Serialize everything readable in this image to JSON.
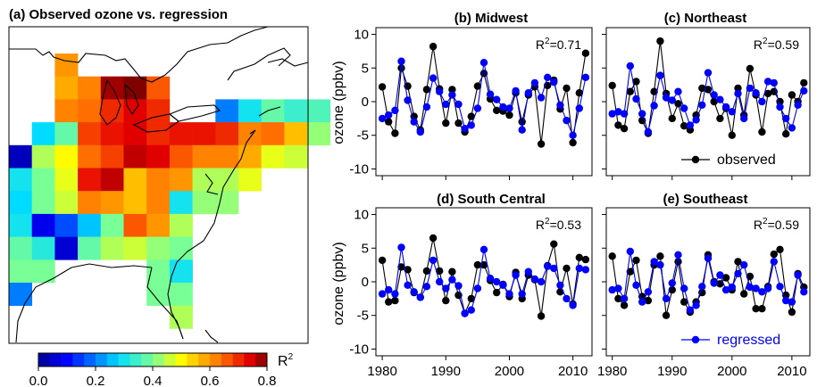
{
  "chart_data": [
    {
      "type": "heatmap",
      "title": "(a) Observed ozone vs. regression",
      "colorbar": {
        "label": "R",
        "label_sup": "2",
        "ticks": [
          "0.0",
          "0.2",
          "0.4",
          "0.6",
          "0.8"
        ],
        "range": [
          0.0,
          0.8
        ]
      },
      "grid_origin": {
        "col0": 0,
        "row0": 0
      },
      "cells": [
        [
          2,
          0,
          0.6
        ],
        [
          2,
          1,
          0.58
        ],
        [
          3,
          1,
          0.62
        ],
        [
          4,
          1,
          0.78
        ],
        [
          5,
          1,
          0.82
        ],
        [
          6,
          1,
          0.66
        ],
        [
          2,
          2,
          0.62
        ],
        [
          3,
          2,
          0.64
        ],
        [
          4,
          2,
          0.7
        ],
        [
          5,
          2,
          0.74
        ],
        [
          6,
          2,
          0.7
        ],
        [
          9,
          2,
          0.2
        ],
        [
          10,
          2,
          0.3
        ],
        [
          11,
          2,
          0.38
        ],
        [
          12,
          2,
          0.34
        ],
        [
          13,
          2,
          0.36
        ],
        [
          1,
          3,
          0.28
        ],
        [
          2,
          3,
          0.38
        ],
        [
          3,
          3,
          0.68
        ],
        [
          4,
          3,
          0.72
        ],
        [
          5,
          3,
          0.74
        ],
        [
          6,
          3,
          0.7
        ],
        [
          7,
          3,
          0.72
        ],
        [
          8,
          3,
          0.72
        ],
        [
          9,
          3,
          0.7
        ],
        [
          10,
          3,
          0.62
        ],
        [
          11,
          3,
          0.64
        ],
        [
          12,
          3,
          0.56
        ],
        [
          13,
          3,
          0.42
        ],
        [
          0,
          4,
          0.04
        ],
        [
          1,
          4,
          0.44
        ],
        [
          2,
          4,
          0.5
        ],
        [
          3,
          4,
          0.64
        ],
        [
          4,
          4,
          0.68
        ],
        [
          5,
          4,
          0.76
        ],
        [
          6,
          4,
          0.74
        ],
        [
          7,
          4,
          0.66
        ],
        [
          8,
          4,
          0.62
        ],
        [
          9,
          4,
          0.62
        ],
        [
          10,
          4,
          0.58
        ],
        [
          11,
          4,
          0.48
        ],
        [
          12,
          4,
          0.46
        ],
        [
          0,
          5,
          0.3
        ],
        [
          1,
          5,
          0.4
        ],
        [
          2,
          5,
          0.48
        ],
        [
          3,
          5,
          0.72
        ],
        [
          4,
          5,
          0.76
        ],
        [
          5,
          5,
          0.56
        ],
        [
          6,
          5,
          0.62
        ],
        [
          7,
          5,
          0.6
        ],
        [
          8,
          5,
          0.44
        ],
        [
          9,
          5,
          0.44
        ],
        [
          10,
          5,
          0.48
        ],
        [
          0,
          6,
          0.28
        ],
        [
          1,
          6,
          0.4
        ],
        [
          2,
          6,
          0.46
        ],
        [
          3,
          6,
          0.62
        ],
        [
          4,
          6,
          0.6
        ],
        [
          5,
          6,
          0.56
        ],
        [
          6,
          6,
          0.62
        ],
        [
          7,
          6,
          0.3
        ],
        [
          8,
          6,
          0.42
        ],
        [
          9,
          6,
          0.42
        ],
        [
          0,
          7,
          0.3
        ],
        [
          1,
          7,
          0.08
        ],
        [
          2,
          7,
          0.16
        ],
        [
          3,
          7,
          0.26
        ],
        [
          4,
          7,
          0.4
        ],
        [
          5,
          7,
          0.66
        ],
        [
          6,
          7,
          0.6
        ],
        [
          7,
          7,
          0.44
        ],
        [
          0,
          8,
          0.38
        ],
        [
          1,
          8,
          0.32
        ],
        [
          2,
          8,
          0.06
        ],
        [
          3,
          8,
          0.38
        ],
        [
          4,
          8,
          0.44
        ],
        [
          5,
          8,
          0.46
        ],
        [
          6,
          8,
          0.42
        ],
        [
          7,
          8,
          0.4
        ],
        [
          0,
          9,
          0.4
        ],
        [
          1,
          9,
          0.4
        ],
        [
          6,
          9,
          0.4
        ],
        [
          7,
          9,
          0.3
        ],
        [
          0,
          10,
          0.2
        ],
        [
          6,
          10,
          0.4
        ],
        [
          7,
          10,
          0.4
        ],
        [
          7,
          11,
          0.44
        ]
      ]
    },
    {
      "type": "line",
      "title": "(b) Midwest",
      "r2_label": "R",
      "r2_sup": "2",
      "r2_value": "=0.71",
      "ylabel": "ozone (ppbv)",
      "ylim": [
        -11,
        11
      ],
      "yticks": [
        "-10",
        "-5",
        "0",
        "5",
        "10"
      ],
      "xlim": [
        1979,
        2013
      ],
      "xticks": [],
      "x": [
        1980,
        1981,
        1982,
        1983,
        1984,
        1985,
        1986,
        1987,
        1988,
        1989,
        1990,
        1991,
        1992,
        1993,
        1994,
        1995,
        1996,
        1997,
        1998,
        1999,
        2000,
        2001,
        2002,
        2003,
        2004,
        2005,
        2006,
        2007,
        2008,
        2009,
        2010,
        2011,
        2012
      ],
      "series": [
        {
          "name": "observed",
          "color": "#000000",
          "values": [
            2.2,
            -3.0,
            -4.7,
            5.0,
            2.3,
            -2.2,
            -4.2,
            1.8,
            8.2,
            1.9,
            -3.2,
            1.8,
            -3.2,
            -4.5,
            -2.2,
            2.3,
            4.2,
            0.4,
            -1.3,
            -1.4,
            -2.0,
            1.3,
            -3.0,
            1.0,
            2.2,
            -6.3,
            2.4,
            3.2,
            -1.1,
            2.0,
            -6.1,
            1.3,
            7.2
          ]
        },
        {
          "name": "regressed",
          "color": "#0000ff",
          "values": [
            -2.5,
            -2.0,
            -1.3,
            6.0,
            0.2,
            -3.0,
            -4.5,
            -0.8,
            3.5,
            1.5,
            -0.4,
            1.0,
            -0.4,
            -4.0,
            -3.5,
            -1.0,
            5.8,
            1.1,
            0.3,
            -0.8,
            -1.0,
            1.6,
            -4.2,
            1.3,
            2.8,
            0.6,
            3.6,
            2.9,
            -0.5,
            -2.8,
            -5.0,
            -1.0,
            3.6
          ]
        }
      ]
    },
    {
      "type": "line",
      "title": "(c) Northeast",
      "r2_label": "R",
      "r2_sup": "2",
      "r2_value": "=0.59",
      "ylabel": "",
      "ylim": [
        -11,
        11
      ],
      "yticks": [],
      "xlim": [
        1979,
        2013
      ],
      "xticks": [],
      "x": [
        1980,
        1981,
        1982,
        1983,
        1984,
        1985,
        1986,
        1987,
        1988,
        1989,
        1990,
        1991,
        1992,
        1993,
        1994,
        1995,
        1996,
        1997,
        1998,
        1999,
        2000,
        2001,
        2002,
        2003,
        2004,
        2005,
        2006,
        2007,
        2008,
        2009,
        2010,
        2011,
        2012
      ],
      "series": [
        {
          "name": "observed",
          "color": "#000000",
          "values": [
            2.4,
            -3.5,
            -4.0,
            1.5,
            3.0,
            -2.8,
            -4.7,
            1.5,
            9.0,
            1.2,
            -2.5,
            -0.3,
            -3.6,
            -4.2,
            -2.0,
            2.0,
            1.8,
            0.0,
            -2.5,
            -1.0,
            -5.0,
            2.0,
            -2.0,
            4.9,
            1.0,
            -4.5,
            1.2,
            1.5,
            0.0,
            -4.8,
            1.0,
            0.0,
            2.8
          ]
        },
        {
          "name": "regressed",
          "color": "#0000ff",
          "values": [
            -1.8,
            -1.5,
            -1.8,
            5.3,
            0.4,
            -1.8,
            -4.5,
            -0.6,
            3.9,
            0.6,
            0.2,
            1.5,
            -1.0,
            -3.5,
            -2.7,
            -0.5,
            4.3,
            1.0,
            0.3,
            -0.8,
            -1.5,
            1.2,
            -2.5,
            2.0,
            1.3,
            0.0,
            3.0,
            2.8,
            -0.8,
            -2.5,
            -3.9,
            -0.5,
            1.6
          ]
        }
      ]
    },
    {
      "type": "line",
      "title": "(d) South Central",
      "r2_label": "R",
      "r2_sup": "2",
      "r2_value": "=0.53",
      "ylabel": "ozone (ppbv)",
      "ylim": [
        -11,
        11
      ],
      "yticks": [
        "-10",
        "-5",
        "0",
        "5",
        "10"
      ],
      "xlim": [
        1979,
        2013
      ],
      "xticks": [
        "1980",
        "1990",
        "2000",
        "2010"
      ],
      "x": [
        1980,
        1981,
        1982,
        1983,
        1984,
        1985,
        1986,
        1987,
        1988,
        1989,
        1990,
        1991,
        1992,
        1993,
        1994,
        1995,
        1996,
        1997,
        1998,
        1999,
        2000,
        2001,
        2002,
        2003,
        2004,
        2005,
        2006,
        2007,
        2008,
        2009,
        2010,
        2011,
        2012
      ],
      "series": [
        {
          "name": "observed",
          "color": "#000000",
          "values": [
            3.2,
            -3.0,
            -2.8,
            2.2,
            1.8,
            -1.6,
            -2.3,
            1.6,
            6.5,
            1.6,
            -2.8,
            1.5,
            -2.0,
            -4.7,
            -2.5,
            2.5,
            2.5,
            0.2,
            -1.6,
            -0.4,
            -2.2,
            1.4,
            -2.5,
            1.0,
            0.3,
            -5.1,
            2.4,
            5.6,
            -1.5,
            2.0,
            -3.3,
            3.6,
            3.3
          ]
        },
        {
          "name": "regressed",
          "color": "#0000ff",
          "values": [
            -1.8,
            -1.2,
            -1.8,
            5.1,
            -0.5,
            -1.5,
            -2.3,
            -0.7,
            3.2,
            0.0,
            -1.0,
            0.3,
            -0.6,
            -4.7,
            -4.2,
            -1.0,
            4.8,
            0.5,
            0.0,
            -0.5,
            -1.8,
            1.0,
            -1.8,
            1.5,
            0.4,
            0.0,
            2.3,
            2.0,
            -0.5,
            -2.5,
            -3.5,
            2.0,
            1.8
          ]
        }
      ]
    },
    {
      "type": "line",
      "title": "(e) Southeast",
      "r2_label": "R",
      "r2_sup": "2",
      "r2_value": "=0.59",
      "ylabel": "",
      "ylim": [
        -11,
        11
      ],
      "yticks": [],
      "xlim": [
        1979,
        2013
      ],
      "xticks": [
        "1980",
        "1990",
        "2000",
        "2010"
      ],
      "x": [
        1980,
        1981,
        1982,
        1983,
        1984,
        1985,
        1986,
        1987,
        1988,
        1989,
        1990,
        1991,
        1992,
        1993,
        1994,
        1995,
        1996,
        1997,
        1998,
        1999,
        2000,
        2001,
        2002,
        2003,
        2004,
        2005,
        2006,
        2007,
        2008,
        2009,
        2010,
        2011,
        2012
      ],
      "series": [
        {
          "name": "observed",
          "color": "#000000",
          "values": [
            3.8,
            -2.5,
            -3.5,
            1.5,
            3.2,
            -2.2,
            -2.8,
            2.5,
            3.8,
            -5.0,
            -1.2,
            3.0,
            -3.0,
            -4.5,
            -3.0,
            -1.6,
            4.0,
            0.0,
            -0.3,
            0.6,
            -1.2,
            3.0,
            -1.8,
            0.8,
            -4.0,
            -4.0,
            -0.7,
            4.1,
            4.8,
            -2.0,
            -4.5,
            1.2,
            -0.8
          ]
        },
        {
          "name": "regressed",
          "color": "#0000ff",
          "values": [
            -1.2,
            -1.0,
            -2.5,
            4.5,
            -0.5,
            -3.0,
            -1.5,
            3.0,
            2.5,
            -2.5,
            -0.2,
            4.0,
            -1.0,
            -4.2,
            -3.5,
            -0.7,
            3.5,
            -0.2,
            1.0,
            -1.2,
            -0.8,
            1.2,
            2.5,
            -0.8,
            -1.0,
            -1.5,
            -1.0,
            3.0,
            -0.7,
            -2.8,
            -3.0,
            1.0,
            -1.5
          ]
        }
      ]
    }
  ],
  "legend_observed": "observed",
  "legend_regressed": "regressed"
}
